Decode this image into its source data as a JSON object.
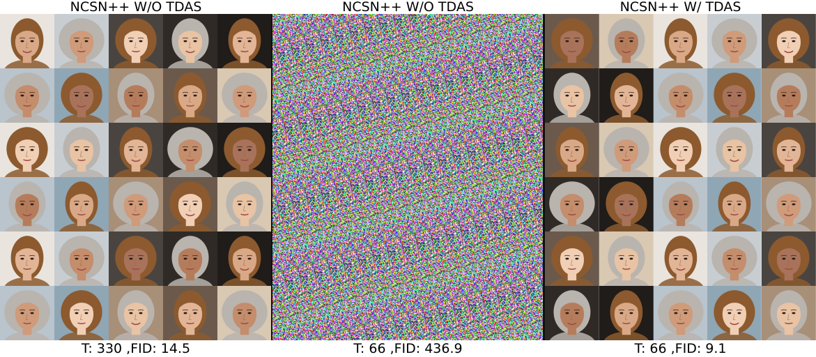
{
  "panels": [
    {
      "title": "NCSN++ W/O TDAS",
      "caption": "T: 330 ,FID: 14.5",
      "content": "faces"
    },
    {
      "title": "NCSN++ W/O TDAS",
      "caption": "T: 66 ,FID: 436.9",
      "content": "noise"
    },
    {
      "title": "NCSN++ W/ TDAS",
      "caption": "T: 66 ,FID: 9.1",
      "content": "faces"
    }
  ],
  "grid": {
    "rows": 6,
    "cols": 5
  },
  "palettes": {
    "backgrounds": [
      "#e9e4de",
      "#2f2a26",
      "#8fa6b5",
      "#d9c8b2",
      "#4a4440",
      "#b9c4cc",
      "#6b5a4c",
      "#c8cdd2",
      "#1f1c1a",
      "#a88f78"
    ],
    "skins": [
      "#e8c3a4",
      "#d9a886",
      "#c48d6c",
      "#f0cfb5",
      "#b57c5c",
      "#e2b596",
      "#cf9b7a",
      "#a8735a"
    ],
    "hairs": [
      "#2a1d15",
      "#5a3a22",
      "#8c5a2e",
      "#c98f4f",
      "#e3c38c",
      "#1a1412",
      "#6e4a32",
      "#b9b4ae",
      "#3b2a20",
      "#d9a45e"
    ]
  }
}
